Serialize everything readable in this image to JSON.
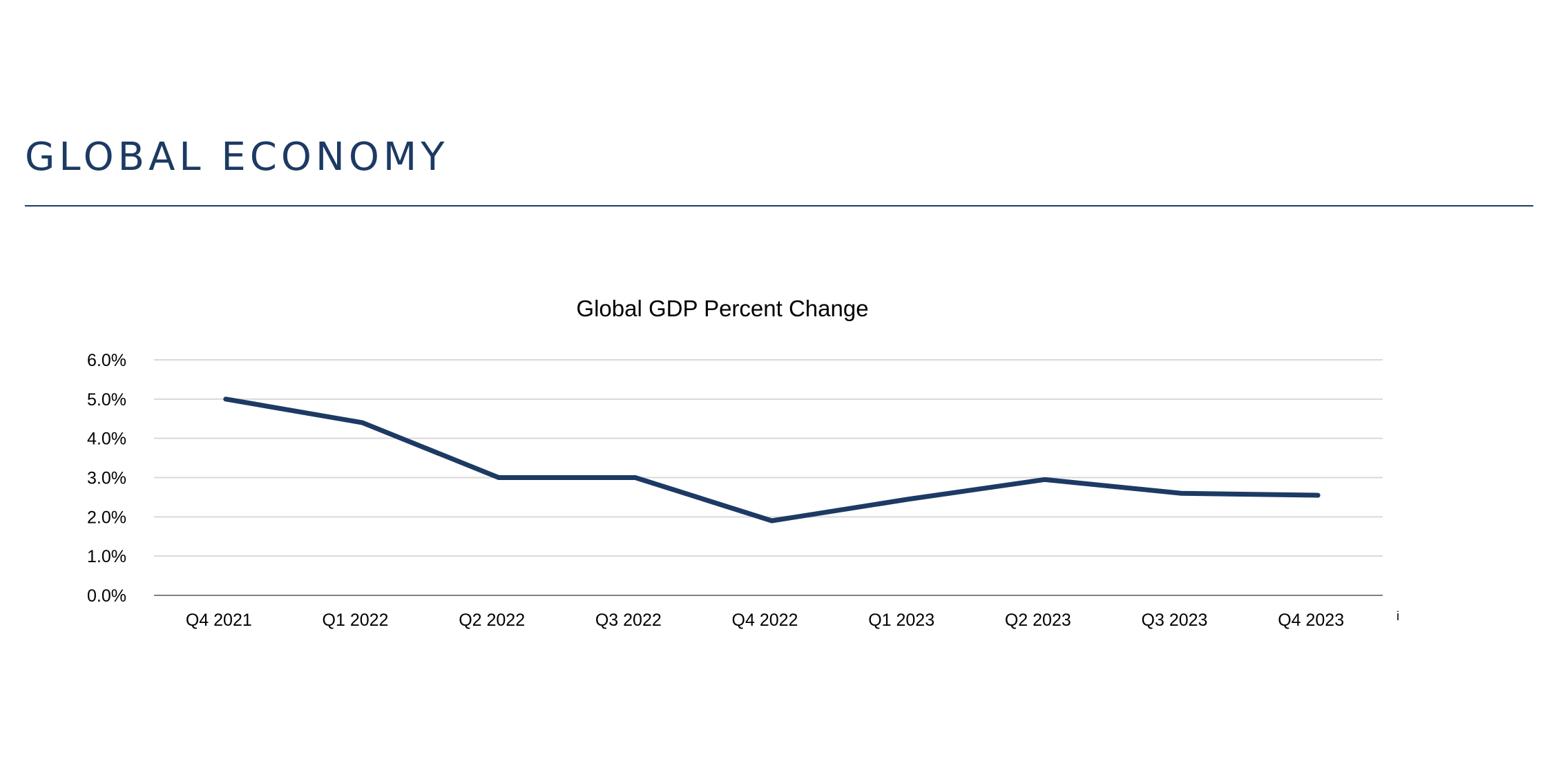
{
  "slide": {
    "title": "GLOBAL ECONOMY",
    "accent_color": "#1c3a63"
  },
  "footnote_mark": "i",
  "chart_data": {
    "type": "line",
    "title": "Global GDP Percent Change",
    "xlabel": "",
    "ylabel": "",
    "categories": [
      "Q4 2021",
      "Q1 2022",
      "Q2 2022",
      "Q3 2022",
      "Q4 2022",
      "Q1 2023",
      "Q2 2023",
      "Q3 2023",
      "Q4 2023"
    ],
    "series": [
      {
        "name": "Global GDP Percent Change",
        "color": "#1c3a63",
        "values": [
          5.0,
          4.4,
          3.0,
          3.0,
          1.9,
          2.45,
          2.95,
          2.6,
          2.55
        ]
      }
    ],
    "ylim": [
      0,
      6
    ],
    "yticks": [
      0,
      1,
      2,
      3,
      4,
      5,
      6
    ],
    "ytick_labels": [
      "0.0%",
      "1.0%",
      "2.0%",
      "3.0%",
      "4.0%",
      "5.0%",
      "6.0%"
    ],
    "grid": true,
    "legend": "none"
  }
}
